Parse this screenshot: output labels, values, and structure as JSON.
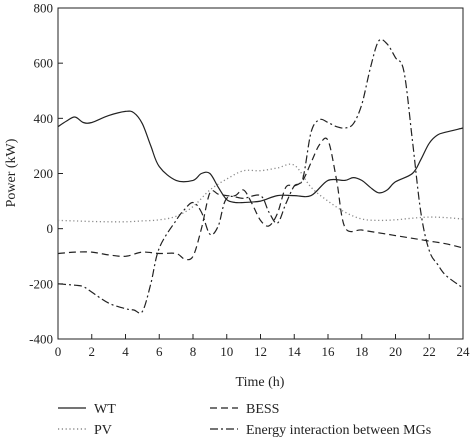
{
  "chart_data": {
    "type": "line",
    "title": "",
    "xlabel": "Time (h)",
    "ylabel": "Power (kW)",
    "xlim": [
      0,
      24
    ],
    "ylim": [
      -400,
      800
    ],
    "xticks": [
      0,
      2,
      4,
      6,
      8,
      10,
      12,
      14,
      16,
      18,
      20,
      22,
      24
    ],
    "yticks": [
      -400,
      -200,
      0,
      200,
      400,
      600,
      800
    ],
    "grid": false,
    "legend_position": "bottom",
    "series": [
      {
        "name": "WT",
        "style": "solid",
        "color": "#222222",
        "x": [
          0,
          0.5,
          1,
          1.5,
          2,
          3,
          4,
          4.5,
          5,
          5.5,
          6,
          7,
          8,
          8.5,
          9,
          9.5,
          10,
          10.5,
          11,
          12,
          13,
          14,
          15,
          16,
          17,
          17.5,
          18,
          18.5,
          19,
          19.5,
          20,
          21,
          21.5,
          22,
          22.5,
          23,
          24
        ],
        "y": [
          370,
          390,
          405,
          385,
          385,
          410,
          425,
          420,
          380,
          300,
          225,
          175,
          175,
          200,
          200,
          150,
          105,
          95,
          95,
          100,
          120,
          120,
          120,
          175,
          175,
          185,
          175,
          150,
          130,
          140,
          170,
          200,
          250,
          310,
          340,
          350,
          365
        ]
      },
      {
        "name": "PV",
        "style": "dotted",
        "color": "#8a8a8a",
        "x": [
          0,
          1,
          2,
          3,
          4,
          5,
          6,
          7,
          8,
          9,
          10,
          11,
          12,
          13,
          14,
          15,
          16,
          17,
          18,
          19,
          20,
          21,
          22,
          23,
          24
        ],
        "y": [
          30,
          28,
          26,
          25,
          25,
          28,
          32,
          45,
          80,
          140,
          180,
          210,
          210,
          220,
          230,
          150,
          100,
          60,
          35,
          30,
          32,
          38,
          42,
          40,
          35
        ]
      },
      {
        "name": "BESS",
        "style": "dashed",
        "color": "#222222",
        "x": [
          0,
          1,
          2,
          3,
          4,
          5,
          6,
          7,
          7.5,
          8,
          8.5,
          9,
          9.5,
          10,
          10.5,
          11,
          11.5,
          12,
          12.5,
          13,
          13.5,
          14,
          14.5,
          15,
          15.5,
          16,
          16.5,
          17,
          18,
          19,
          20,
          21,
          22,
          23,
          24
        ],
        "y": [
          -90,
          -85,
          -85,
          -95,
          -100,
          -85,
          -90,
          -90,
          -110,
          -100,
          0,
          130,
          125,
          120,
          120,
          140,
          90,
          30,
          10,
          55,
          150,
          155,
          175,
          240,
          305,
          320,
          180,
          5,
          -5,
          -15,
          -25,
          -35,
          -45,
          -55,
          -70
        ]
      },
      {
        "name": "Energy interaction between MGs",
        "style": "dashdot",
        "color": "#222222",
        "x": [
          0,
          1,
          1.5,
          2,
          3,
          4,
          4.5,
          5,
          5.5,
          6,
          7,
          7.5,
          8,
          8.5,
          9,
          9.5,
          10,
          11,
          12,
          12.5,
          13,
          13.5,
          14,
          14.5,
          15,
          15.5,
          16,
          16.5,
          17,
          17.5,
          18,
          18.5,
          19,
          19.5,
          20,
          20.5,
          21,
          21.5,
          22,
          22.5,
          23,
          24
        ],
        "y": [
          -200,
          -205,
          -210,
          -230,
          -270,
          -290,
          -295,
          -300,
          -200,
          -70,
          30,
          70,
          95,
          60,
          -20,
          10,
          110,
          110,
          120,
          60,
          20,
          90,
          155,
          180,
          350,
          395,
          385,
          370,
          365,
          380,
          450,
          580,
          680,
          670,
          620,
          570,
          320,
          60,
          -80,
          -130,
          -170,
          -215
        ]
      }
    ]
  }
}
